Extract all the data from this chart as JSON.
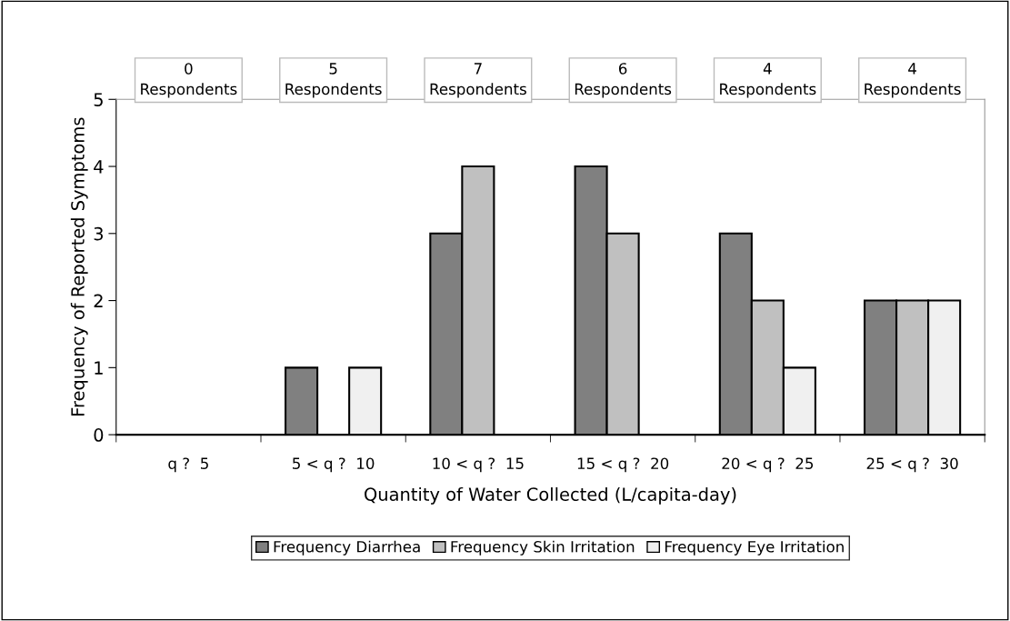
{
  "chart_data": {
    "type": "bar",
    "xlabel": "Quantity of Water Collected (L/capita-day)",
    "ylabel": "Frequency of Reported Symptoms",
    "categories": [
      "q ?  5",
      "5 < q ?  10",
      "10 < q ?  15",
      "15 < q ?  20",
      "20 < q ?  25",
      "25 < q ?  30"
    ],
    "series": [
      {
        "name": "Frequency Diarrhea",
        "color": "#808080",
        "values": [
          0,
          1,
          3,
          4,
          3,
          2
        ]
      },
      {
        "name": "Frequency Skin Irritation",
        "color": "#c0c0c0",
        "values": [
          0,
          0,
          4,
          3,
          2,
          2
        ]
      },
      {
        "name": "Frequency Eye Irritation",
        "color": "#f0f0f0",
        "values": [
          0,
          1,
          0,
          0,
          1,
          2
        ]
      }
    ],
    "ylim": [
      0,
      5
    ],
    "yticks": [
      0,
      1,
      2,
      3,
      4,
      5
    ],
    "grid": false,
    "legend": "bottom",
    "annotations": [
      "0\nRespondents",
      "5\nRespondents",
      "7\nRespondents",
      "6\nRespondents",
      "4\nRespondents",
      "4\nRespondents"
    ]
  }
}
